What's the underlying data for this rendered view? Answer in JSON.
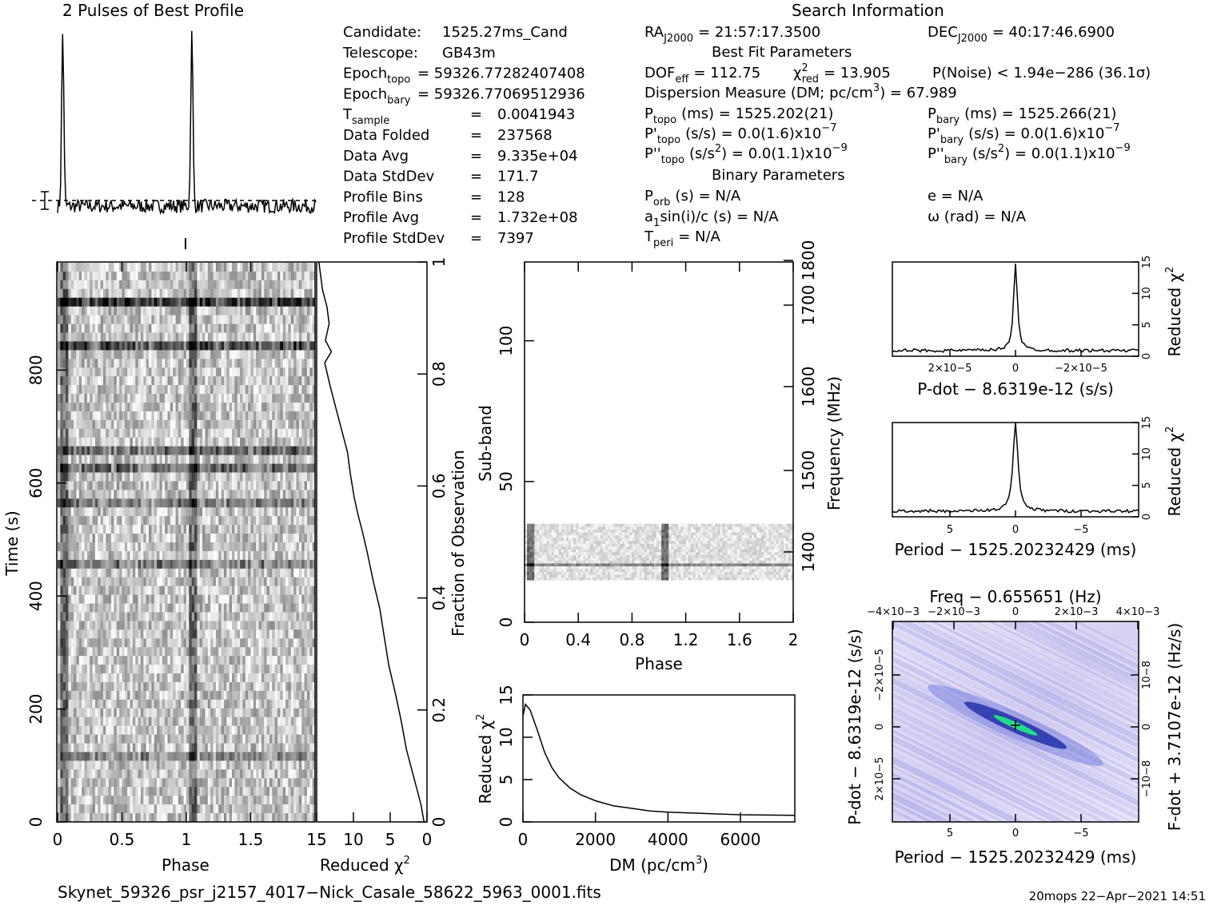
{
  "header": {
    "profile_title": "2 Pulses of Best Profile",
    "search_title": "Search Information"
  },
  "info_left": [
    {
      "label": "Candidate:",
      "value": "1525.27ms_Cand"
    },
    {
      "label": "Telescope:",
      "value": "GB43m"
    },
    {
      "label": "Epoch",
      "sub": "topo",
      "value": "= 59326.77282407408"
    },
    {
      "label": "Epoch",
      "sub": "bary",
      "value": "= 59326.77069512936"
    },
    {
      "label": "T",
      "sub": "sample",
      "eq": "=",
      "value": "0.0041943"
    },
    {
      "label": "Data Folded",
      "eq": "=",
      "value": "237568"
    },
    {
      "label": "Data Avg",
      "eq": "=",
      "value": "9.335e+04"
    },
    {
      "label": "Data StdDev",
      "eq": "=",
      "value": "171.7"
    },
    {
      "label": "Profile Bins",
      "eq": "=",
      "value": "128"
    },
    {
      "label": "Profile Avg",
      "eq": "=",
      "value": "1.732e+08"
    },
    {
      "label": "Profile StdDev",
      "eq": "=",
      "value": "7397"
    }
  ],
  "info_mid": {
    "ra_label": "RA",
    "ra_sub": "J2000",
    "ra_value": "= 21:57:17.3500",
    "dec_label": "DEC",
    "dec_sub": "J2000",
    "dec_value": "= 40:17:46.6900",
    "best_fit_title": "Best Fit Parameters",
    "dof": "DOF",
    "dof_sub": "eff",
    "dof_value": "= 112.75",
    "chi": "χ",
    "chi_sup": "2",
    "chi_sub": "red",
    "chi_value": "= 13.905",
    "pnoise": "P(Noise) < 1.94e−286   (36.1σ)",
    "dm_text": "Dispersion Measure (DM; pc/cm",
    "dm_sup": "3",
    "dm_value": ") = 67.989",
    "ptopo": "P",
    "ptopo_sub": "topo",
    "ptopo_value": "(ms)  =   1525.202(21)",
    "pbary": "P",
    "pbary_sub": "bary",
    "pbary_value": "(ms)  =   1525.266(21)",
    "pdtopo": "P'",
    "pdtopo_sub": "topo",
    "pdtopo_value": "(s/s) = 0.0(1.6)x10",
    "pdtopo_exp": "−7",
    "pdbary": "P'",
    "pdbary_sub": "bary",
    "pdbary_value": "(s/s) = 0.0(1.6)x10",
    "pdbary_exp": "−7",
    "pddtopo": "P''",
    "pddtopo_sub": "topo",
    "pddtopo_value": "(s/s",
    "pddtopo_sup2": "2",
    "pddtopo_value2": ") = 0.0(1.1)x10",
    "pddtopo_exp": "−9",
    "pddbary": "P''",
    "pddbary_sub": "bary",
    "pddbary_value": "(s/s",
    "pddbary_sup2": "2",
    "pddbary_value2": ") = 0.0(1.1)x10",
    "pddbary_exp": "−9",
    "binary_title": "Binary Parameters",
    "porb": "P",
    "porb_sub": "orb",
    "porb_value": "(s) = N/A",
    "e_value": "e = N/A",
    "a1": "a",
    "a1_sub": "1",
    "a1_value": "sin(i)/c (s) = N/A",
    "omega_value": "ω (rad) = N/A",
    "tperi": "T",
    "tperi_sub": "peri",
    "tperi_value": "= N/A"
  },
  "footer": {
    "filename": "Skynet_59326_psr_j2157_4017−Nick_Casale_58622_5963_0001.fits",
    "stamp": "20mops 22−Apr−2021 14:51"
  },
  "colors": {
    "ink": "#000000",
    "ppdot_low": "#f4f0fb",
    "ppdot_mid": "#8080e0",
    "ppdot_high": "#0a1a7a",
    "ppdot_peak": "#22dd88"
  },
  "chart_data": [
    {
      "id": "profile",
      "type": "line",
      "title": "2 Pulses of Best Profile",
      "xlim": [
        0,
        2
      ],
      "description_peaks": [
        0.04,
        1.04
      ],
      "peak_height": 1.0,
      "baseline": 0.0
    },
    {
      "id": "time_phase",
      "type": "heatmap",
      "xlabel": "Phase",
      "ylabel": "Time (s)",
      "xlim": [
        0,
        2
      ],
      "ylim": [
        0,
        990
      ],
      "xticks": [
        "0",
        "0.5",
        "1",
        "1.5"
      ],
      "yticks": [
        "0",
        "200",
        "400",
        "600",
        "800"
      ]
    },
    {
      "id": "chi_vs_time",
      "type": "line",
      "xlabel": "Reduced χ2",
      "ylabel_right": "Fraction of Observation",
      "xlim": [
        15,
        0
      ],
      "ylim": [
        0,
        1
      ],
      "xticks": [
        "15",
        "10",
        "5",
        "0"
      ],
      "yticks_right": [
        "0",
        "0.2",
        "0.4",
        "0.6",
        "0.8",
        "1"
      ],
      "points": [
        [
          0.4,
          0.0
        ],
        [
          0.8,
          0.03
        ],
        [
          1.2,
          0.05
        ],
        [
          2.0,
          0.09
        ],
        [
          2.8,
          0.13
        ],
        [
          3.5,
          0.18
        ],
        [
          4.3,
          0.23
        ],
        [
          5.2,
          0.28
        ],
        [
          5.8,
          0.33
        ],
        [
          6.4,
          0.38
        ],
        [
          7.3,
          0.43
        ],
        [
          8.1,
          0.48
        ],
        [
          8.8,
          0.52
        ],
        [
          9.4,
          0.55
        ],
        [
          9.9,
          0.58
        ],
        [
          10.4,
          0.62
        ],
        [
          10.8,
          0.66
        ],
        [
          11.6,
          0.7
        ],
        [
          12.4,
          0.74
        ],
        [
          13.2,
          0.78
        ],
        [
          13.9,
          0.82
        ],
        [
          13.0,
          0.84
        ],
        [
          13.8,
          0.86
        ],
        [
          13.3,
          0.89
        ],
        [
          13.6,
          0.92
        ],
        [
          14.2,
          0.95
        ],
        [
          14.5,
          0.98
        ],
        [
          14.7,
          1.0
        ]
      ]
    },
    {
      "id": "subband",
      "type": "heatmap",
      "xlabel": "Phase",
      "ylabel": "Sub-band",
      "ylabel_right": "Frequency (MHz)",
      "xlim": [
        0,
        2
      ],
      "ylim": [
        0,
        128
      ],
      "xticks": [
        "0",
        "0.4",
        "0.8",
        "1.2",
        "1.6",
        "2"
      ],
      "yticks": [
        "0",
        "50",
        "100"
      ],
      "yticks_right": [
        "1400",
        "1500",
        "1600",
        "1700",
        "1800"
      ],
      "filled_bands": [
        15,
        35
      ]
    },
    {
      "id": "dm_curve",
      "type": "line",
      "xlabel": "DM (pc/cm3)",
      "ylabel": "Reduced χ2",
      "xlim": [
        0,
        7500
      ],
      "ylim": [
        0,
        15
      ],
      "xticks": [
        "0",
        "2000",
        "4000",
        "6000"
      ],
      "yticks": [
        "0",
        "5",
        "10",
        "15"
      ],
      "points": [
        [
          0,
          12.5
        ],
        [
          68,
          13.9
        ],
        [
          200,
          13.2
        ],
        [
          400,
          10.8
        ],
        [
          600,
          8.2
        ],
        [
          800,
          6.4
        ],
        [
          1000,
          5.2
        ],
        [
          1300,
          4.0
        ],
        [
          1600,
          3.2
        ],
        [
          2000,
          2.5
        ],
        [
          2500,
          1.9
        ],
        [
          3000,
          1.6
        ],
        [
          3500,
          1.3
        ],
        [
          4000,
          1.15
        ],
        [
          5000,
          1.0
        ],
        [
          6000,
          0.85
        ],
        [
          7000,
          0.8
        ],
        [
          7500,
          0.78
        ]
      ]
    },
    {
      "id": "pdot_curve",
      "type": "line",
      "xlabel": "P-dot − 8.6319e-12 (s/s)",
      "ylabel_right": "Reduced χ2",
      "ylim": [
        0,
        15
      ],
      "xticks": [
        "2×10−5",
        "0",
        "−2×10−5"
      ],
      "yticks_right": [
        "0",
        "5",
        "10",
        "15"
      ],
      "peak_value": 13.9
    },
    {
      "id": "period_curve",
      "type": "line",
      "xlabel": "Period − 1525.20232429 (ms)",
      "ylabel_right": "Reduced χ2",
      "ylim": [
        0,
        15
      ],
      "xticks": [
        "5",
        "0",
        "−5"
      ],
      "yticks_right": [
        "0",
        "5",
        "10",
        "15"
      ],
      "peak_value": 13.9
    },
    {
      "id": "p_pdot",
      "type": "heatmap",
      "title": "Freq − 0.655651 (Hz)",
      "xlabel": "Period − 1525.20232429 (ms)",
      "ylabel": "P-dot − 8.6319e-12 (s/s)",
      "ylabel_right": "F-dot + 3.7107e-12 (Hz/s)",
      "xticks": [
        "5",
        "0",
        "−5"
      ],
      "xticks_top": [
        "−4×10−3",
        "−2×10−3",
        "0",
        "2×10−3",
        "4×10−3"
      ],
      "yticks": [
        "2×10−5",
        "0",
        "−2×10−5"
      ],
      "yticks_right": [
        "−10−8",
        "0",
        "10−8"
      ]
    }
  ]
}
